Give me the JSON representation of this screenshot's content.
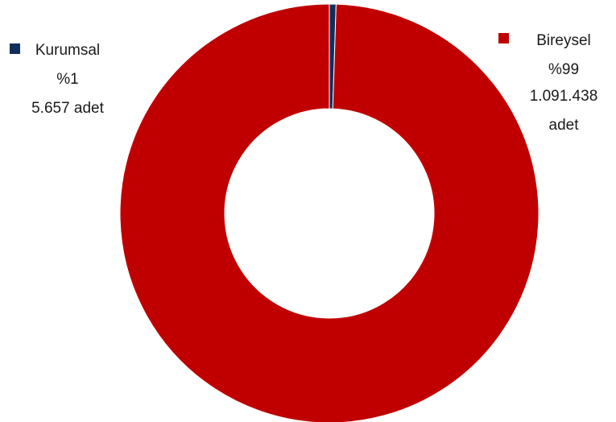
{
  "chart_data": {
    "type": "pie",
    "donut": true,
    "start_angle_deg": 0,
    "slices": [
      {
        "name": "Kurumsal",
        "percent_label": "%1",
        "count_label": "5.657 adet",
        "value": 5657,
        "color": "#112d5c"
      },
      {
        "name": "Bireysel",
        "percent_label": "%99",
        "count_label": "1.091.438",
        "count_unit": "adet",
        "value": 1091438,
        "color": "#c00000"
      }
    ]
  }
}
